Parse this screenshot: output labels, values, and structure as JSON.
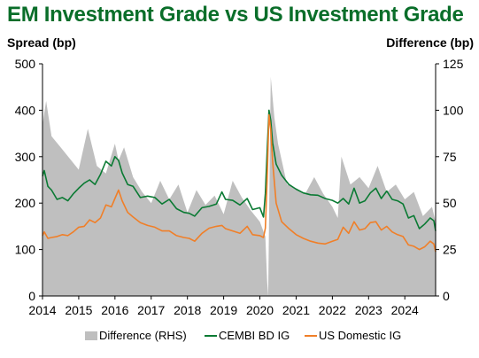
{
  "chart_data": {
    "type": "line",
    "title": "EM Investment Grade vs US Investment Grade",
    "ylabel_left": "Spread (bp)",
    "ylabel_right": "Difference (bp)",
    "xlim": [
      2014.0,
      2024.85
    ],
    "ylim_left": [
      0,
      500
    ],
    "ylim_right": [
      0,
      125
    ],
    "x_ticks": [
      "2014",
      "2015",
      "2016",
      "2017",
      "2018",
      "2019",
      "2020",
      "2021",
      "2022",
      "2023",
      "2024"
    ],
    "y_ticks_left": [
      "0",
      "100",
      "200",
      "300",
      "400",
      "500"
    ],
    "y_ticks_right": [
      "0",
      "25",
      "50",
      "75",
      "100",
      "125"
    ],
    "legend_position": "bottom",
    "colors": {
      "difference": "#bfbfbf",
      "cembi": "#0a7a33",
      "us_ig": "#f07f28",
      "title": "#0a6e2a"
    },
    "series": [
      {
        "name": "Difference (RHS)",
        "type": "area",
        "axis": "right",
        "x": [
          2014.0,
          2014.1,
          2014.25,
          2014.5,
          2014.75,
          2015.0,
          2015.25,
          2015.5,
          2015.75,
          2016.0,
          2016.1,
          2016.25,
          2016.5,
          2016.75,
          2017.0,
          2017.25,
          2017.5,
          2017.75,
          2018.0,
          2018.25,
          2018.5,
          2018.75,
          2019.0,
          2019.25,
          2019.5,
          2019.75,
          2020.0,
          2020.15,
          2020.2,
          2020.23,
          2020.26,
          2020.3,
          2020.4,
          2020.5,
          2020.75,
          2021.0,
          2021.25,
          2021.5,
          2021.75,
          2022.0,
          2022.15,
          2022.25,
          2022.5,
          2022.75,
          2023.0,
          2023.25,
          2023.5,
          2023.75,
          2024.0,
          2024.25,
          2024.5,
          2024.75,
          2024.85
        ],
        "values": [
          92,
          105,
          86,
          80,
          74,
          68,
          90,
          70,
          66,
          82,
          73,
          80,
          64,
          56,
          50,
          62,
          52,
          60,
          45,
          57,
          49,
          54,
          44,
          62,
          53,
          46,
          40,
          32,
          8,
          0,
          55,
          118,
          96,
          82,
          60,
          58,
          55,
          64,
          55,
          48,
          42,
          75,
          60,
          64,
          58,
          70,
          56,
          60,
          52,
          56,
          43,
          48,
          40
        ]
      },
      {
        "name": "CEMBI BD IG",
        "type": "line",
        "axis": "left",
        "x": [
          2014.0,
          2014.05,
          2014.15,
          2014.25,
          2014.4,
          2014.55,
          2014.7,
          2014.85,
          2015.0,
          2015.15,
          2015.3,
          2015.45,
          2015.6,
          2015.75,
          2015.9,
          2016.0,
          2016.1,
          2016.2,
          2016.35,
          2016.5,
          2016.7,
          2016.9,
          2017.1,
          2017.3,
          2017.5,
          2017.7,
          2017.9,
          2018.05,
          2018.2,
          2018.4,
          2018.6,
          2018.8,
          2018.95,
          2019.05,
          2019.25,
          2019.45,
          2019.65,
          2019.8,
          2020.0,
          2020.1,
          2020.15,
          2020.2,
          2020.25,
          2020.3,
          2020.35,
          2020.45,
          2020.6,
          2020.8,
          2021.0,
          2021.2,
          2021.4,
          2021.6,
          2021.8,
          2022.0,
          2022.15,
          2022.3,
          2022.45,
          2022.6,
          2022.75,
          2022.9,
          2023.05,
          2023.2,
          2023.35,
          2023.5,
          2023.65,
          2023.8,
          2023.95,
          2024.1,
          2024.25,
          2024.4,
          2024.55,
          2024.7,
          2024.8,
          2024.85
        ],
        "values": [
          258,
          270,
          236,
          228,
          208,
          212,
          205,
          220,
          232,
          243,
          250,
          240,
          262,
          290,
          280,
          300,
          292,
          265,
          240,
          236,
          212,
          215,
          212,
          198,
          208,
          188,
          180,
          178,
          172,
          190,
          193,
          198,
          224,
          208,
          206,
          196,
          210,
          186,
          190,
          170,
          220,
          310,
          400,
          378,
          330,
          284,
          260,
          240,
          230,
          222,
          218,
          217,
          210,
          206,
          200,
          210,
          198,
          232,
          200,
          205,
          222,
          232,
          210,
          226,
          208,
          205,
          198,
          168,
          173,
          145,
          155,
          168,
          162,
          140
        ]
      },
      {
        "name": "US Domestic IG",
        "type": "line",
        "axis": "left",
        "x": [
          2014.0,
          2014.05,
          2014.15,
          2014.25,
          2014.4,
          2014.55,
          2014.7,
          2014.85,
          2015.0,
          2015.15,
          2015.3,
          2015.45,
          2015.6,
          2015.75,
          2015.9,
          2016.0,
          2016.1,
          2016.2,
          2016.35,
          2016.5,
          2016.7,
          2016.9,
          2017.1,
          2017.3,
          2017.5,
          2017.7,
          2017.9,
          2018.05,
          2018.2,
          2018.4,
          2018.6,
          2018.8,
          2018.95,
          2019.05,
          2019.25,
          2019.45,
          2019.65,
          2019.8,
          2020.0,
          2020.1,
          2020.15,
          2020.2,
          2020.25,
          2020.3,
          2020.35,
          2020.45,
          2020.6,
          2020.8,
          2021.0,
          2021.2,
          2021.4,
          2021.6,
          2021.8,
          2022.0,
          2022.15,
          2022.3,
          2022.45,
          2022.6,
          2022.75,
          2022.9,
          2023.05,
          2023.2,
          2023.35,
          2023.5,
          2023.65,
          2023.8,
          2023.95,
          2024.1,
          2024.25,
          2024.4,
          2024.55,
          2024.7,
          2024.8,
          2024.85
        ],
        "values": [
          130,
          138,
          124,
          126,
          128,
          132,
          130,
          138,
          148,
          150,
          164,
          158,
          168,
          196,
          192,
          210,
          228,
          205,
          180,
          170,
          158,
          152,
          148,
          140,
          140,
          130,
          126,
          124,
          118,
          135,
          146,
          150,
          152,
          145,
          140,
          135,
          150,
          132,
          130,
          126,
          146,
          250,
          390,
          358,
          290,
          200,
          160,
          145,
          132,
          124,
          118,
          114,
          112,
          118,
          122,
          148,
          135,
          160,
          142,
          145,
          158,
          160,
          142,
          150,
          138,
          132,
          128,
          110,
          107,
          100,
          106,
          118,
          112,
          95
        ]
      }
    ]
  }
}
